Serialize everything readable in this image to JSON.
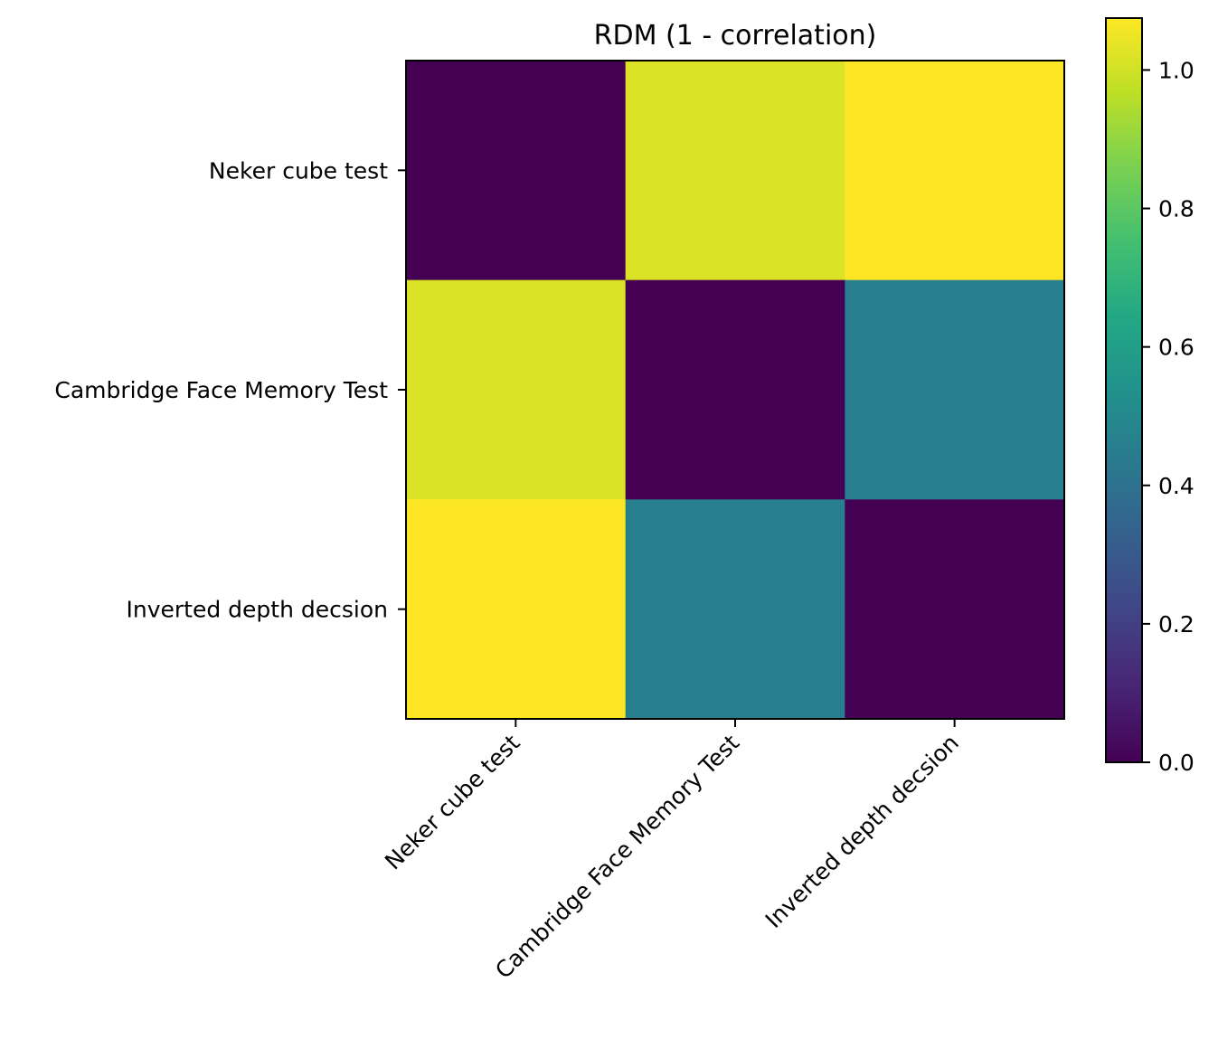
{
  "chart_data": {
    "type": "heatmap",
    "title": "RDM (1 - correlation)",
    "row_labels": [
      "Neker cube test",
      "Cambridge Face Memory Test",
      "Inverted depth decsion"
    ],
    "col_labels": [
      "Neker cube test",
      "Cambridge Face Memory Test",
      "Inverted depth decsion"
    ],
    "values": [
      [
        0.0,
        1.02,
        1.075
      ],
      [
        1.02,
        0.0,
        0.46
      ],
      [
        1.075,
        0.46,
        0.0
      ]
    ],
    "colorbar": {
      "range": [
        0.0,
        1.075
      ],
      "ticks": [
        0.0,
        0.2,
        0.4,
        0.6,
        0.8,
        1.0
      ],
      "tick_labels": [
        "0.0",
        "0.2",
        "0.4",
        "0.6",
        "0.8",
        "1.0"
      ]
    },
    "colormap": "viridis",
    "grid": false
  }
}
